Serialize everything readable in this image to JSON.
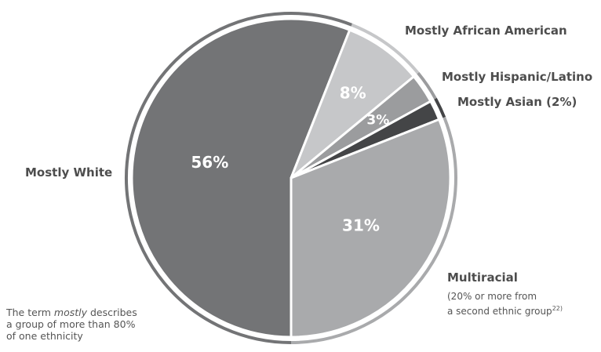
{
  "chart_data": {
    "type": "pie",
    "title": "",
    "slices": [
      {
        "label": "Mostly White",
        "value": 56,
        "value_label": "56%",
        "color": "#737476"
      },
      {
        "label": "Mostly African American",
        "value": 8,
        "value_label": "8%",
        "color": "#c6c7c9"
      },
      {
        "label": "Mostly Hispanic/Latino",
        "value": 3,
        "value_label": "3%",
        "color": "#9b9c9e"
      },
      {
        "label": "Mostly Asian (2%)",
        "value": 2,
        "value_label": "",
        "color": "#444547"
      },
      {
        "label": "Multiracial",
        "value": 31,
        "value_label": "31%",
        "color": "#a9aaac"
      }
    ],
    "multiracial_note_line1": "(20% or more from",
    "multiracial_note_line2": "a second ethnic group",
    "multiracial_note_ref": "22)"
  },
  "footnote": {
    "part1": "The term ",
    "emph": "mostly",
    "part2": " describes",
    "line2": "a group of more than 80%",
    "line3": "of one ethnicity"
  }
}
